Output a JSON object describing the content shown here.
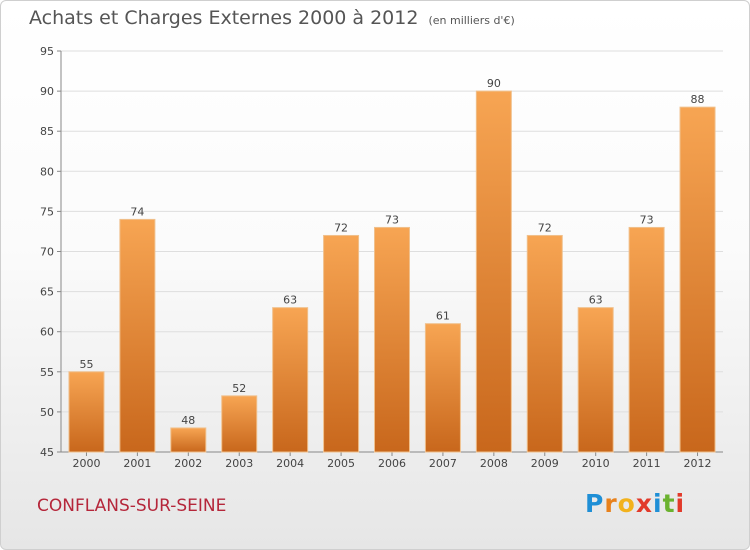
{
  "header": {
    "title": "Achats et Charges Externes 2000 à 2012",
    "subtitle": "(en milliers d'€)"
  },
  "footer": {
    "location": "CONFLANS-SUR-SEINE",
    "brand": "Proxiti",
    "brand_colors": [
      "#1f8fd6",
      "#e8811c",
      "#f2b21c",
      "#e23a2a",
      "#1f8fd6",
      "#6bb22f",
      "#e23a2a"
    ]
  },
  "colors": {
    "bar_top": "#f7a553",
    "bar_bottom": "#c8671c",
    "bar_edge": "#f0c08c",
    "grid": "#dedede",
    "text": "#444444"
  },
  "chart_data": {
    "type": "bar",
    "title": "Achats et Charges Externes 2000 à 2012",
    "subtitle": "(en milliers d'€)",
    "categories": [
      "2000",
      "2001",
      "2002",
      "2003",
      "2004",
      "2005",
      "2006",
      "2007",
      "2008",
      "2009",
      "2010",
      "2011",
      "2012"
    ],
    "values": [
      55,
      74,
      48,
      52,
      63,
      72,
      73,
      61,
      90,
      72,
      63,
      73,
      88
    ],
    "ylim": [
      45,
      95
    ],
    "yticks": [
      45,
      50,
      55,
      60,
      65,
      70,
      75,
      80,
      85,
      90,
      95
    ],
    "grid": true,
    "data_labels": true,
    "xlabel": "",
    "ylabel": ""
  }
}
